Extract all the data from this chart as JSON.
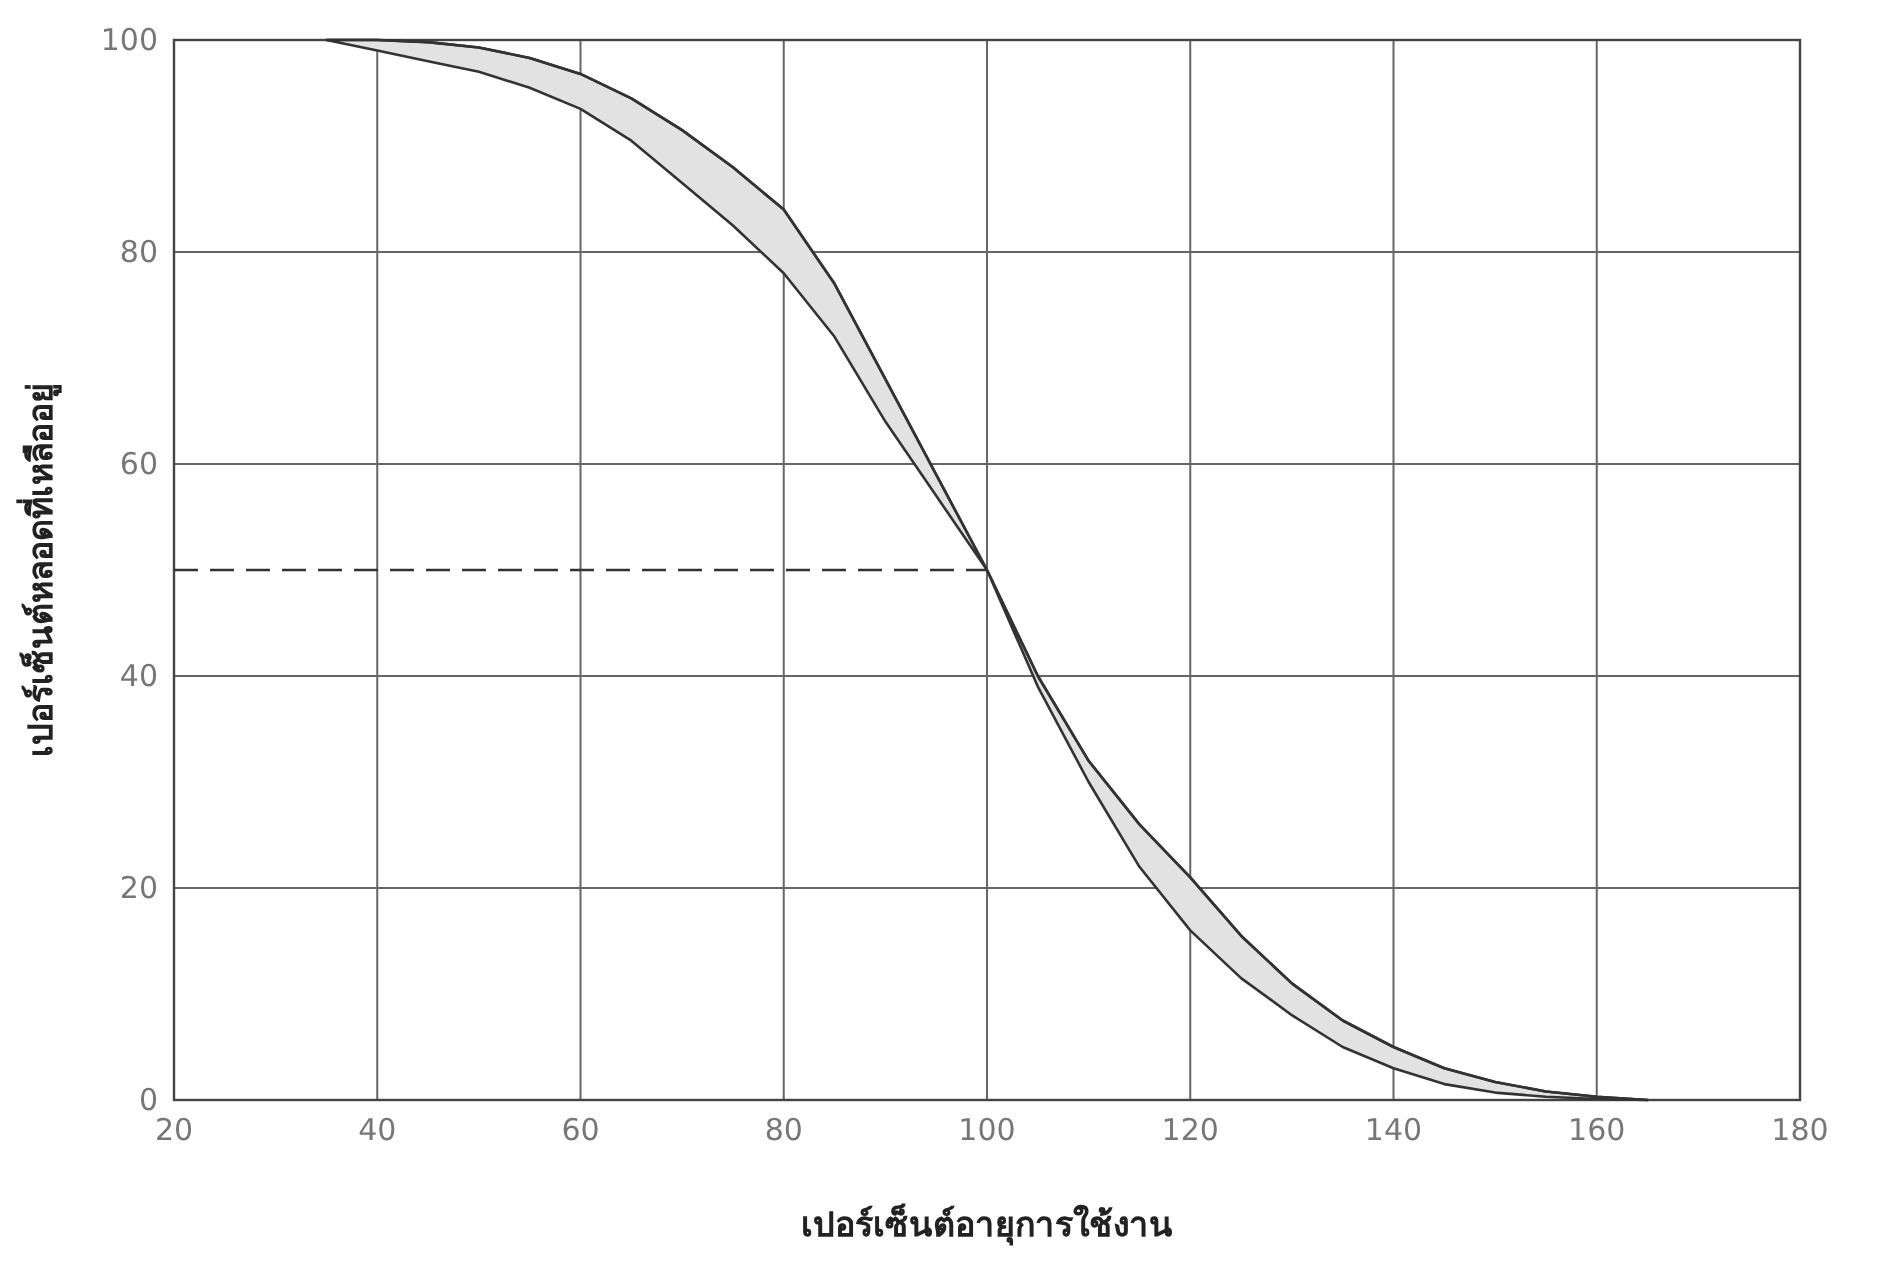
{
  "chart_data": {
    "type": "line",
    "xlabel": "เปอร์เซ็นต์อายุการใช้งาน",
    "ylabel": "เปอร์เซ็นต์หลอดที่เหลืออยู่",
    "xlim": [
      20,
      180
    ],
    "ylim": [
      0,
      100
    ],
    "xticks": [
      20,
      40,
      60,
      80,
      100,
      120,
      140,
      160,
      180
    ],
    "yticks": [
      0,
      20,
      40,
      60,
      80,
      100
    ],
    "grid": true,
    "marker": "none",
    "series": [
      {
        "color": "#333333",
        "x": [
          35,
          40,
          45,
          50,
          55,
          60,
          65,
          70,
          75,
          80,
          85,
          90,
          95,
          100,
          105,
          110,
          115,
          120,
          125,
          130,
          135,
          140,
          145,
          150,
          155,
          160,
          165
        ],
        "values": [
          100,
          100,
          99.8,
          99.3,
          98.3,
          96.8,
          94.5,
          91.5,
          88,
          84,
          77,
          68,
          59,
          50,
          40,
          32,
          26,
          21,
          15.5,
          11,
          7.5,
          5,
          3,
          1.7,
          0.8,
          0.3,
          0
        ],
        "upper": [
          100,
          100,
          99.8,
          99.3,
          98.3,
          96.8,
          94.5,
          91.5,
          88,
          84,
          77,
          68,
          59,
          50,
          40,
          32,
          26,
          21,
          15.5,
          11,
          7.5,
          5,
          3,
          1.7,
          0.8,
          0.3,
          0
        ],
        "lower": [
          100,
          99,
          98,
          97,
          95.5,
          93.5,
          90.5,
          86.5,
          82.5,
          78,
          72,
          64,
          57,
          50,
          39,
          30,
          22,
          16,
          11.5,
          8,
          5,
          3,
          1.5,
          0.7,
          0.3,
          0.1,
          0
        ]
      },
      {
        "color": "#333333",
        "x": [
          20,
          100
        ],
        "values": [
          50,
          50
        ],
        "line_style": "dashed"
      }
    ]
  }
}
